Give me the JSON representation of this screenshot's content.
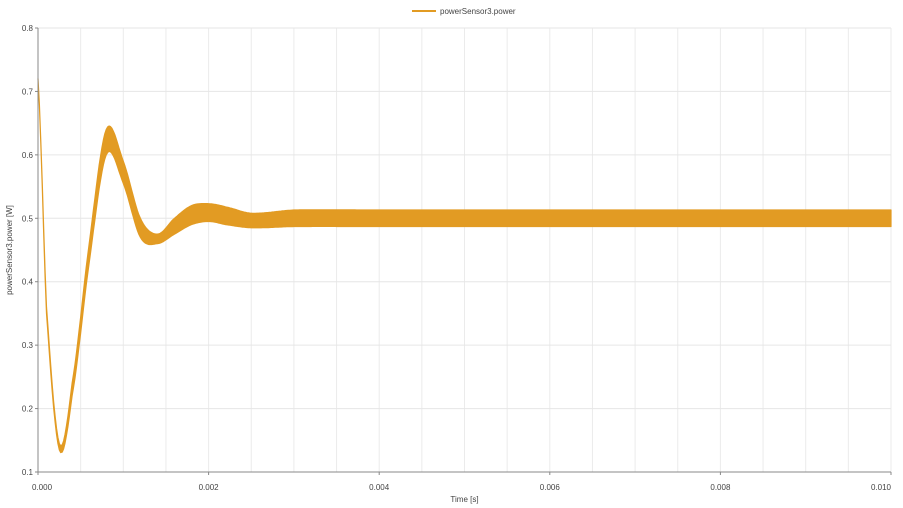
{
  "chart_data": {
    "type": "line",
    "title": "",
    "xlabel": "Time [s]",
    "ylabel": "powerSensor3.power [W]",
    "xlim": [
      0.0,
      0.01
    ],
    "ylim": [
      0.1,
      0.8
    ],
    "x_ticks": [
      "0.000",
      "0.002",
      "0.004",
      "0.006",
      "0.008",
      "0.010"
    ],
    "y_ticks": [
      "0.1",
      "0.2",
      "0.3",
      "0.4",
      "0.5",
      "0.6",
      "0.7",
      "0.8"
    ],
    "grid": true,
    "legend_position": "top-center",
    "series": [
      {
        "name": "powerSensor3.power",
        "color": "#e29b23",
        "style": "oscillating band (envelope shown as upper/lower)",
        "x": [
          0.0,
          0.0001,
          0.00025,
          0.0004,
          0.0006,
          0.0008,
          0.001,
          0.0012,
          0.0014,
          0.0016,
          0.0018,
          0.002,
          0.0022,
          0.0025,
          0.003,
          0.004,
          0.005,
          0.006,
          0.007,
          0.008,
          0.009,
          0.01
        ],
        "upper": [
          0.72,
          0.36,
          0.145,
          0.24,
          0.46,
          0.64,
          0.59,
          0.5,
          0.475,
          0.5,
          0.52,
          0.523,
          0.518,
          0.508,
          0.513,
          0.513,
          0.513,
          0.513,
          0.513,
          0.513,
          0.513,
          0.513
        ],
        "lower": [
          0.72,
          0.35,
          0.135,
          0.22,
          0.43,
          0.6,
          0.555,
          0.47,
          0.46,
          0.475,
          0.49,
          0.495,
          0.49,
          0.485,
          0.487,
          0.487,
          0.487,
          0.487,
          0.487,
          0.487,
          0.487,
          0.487
        ]
      }
    ]
  }
}
